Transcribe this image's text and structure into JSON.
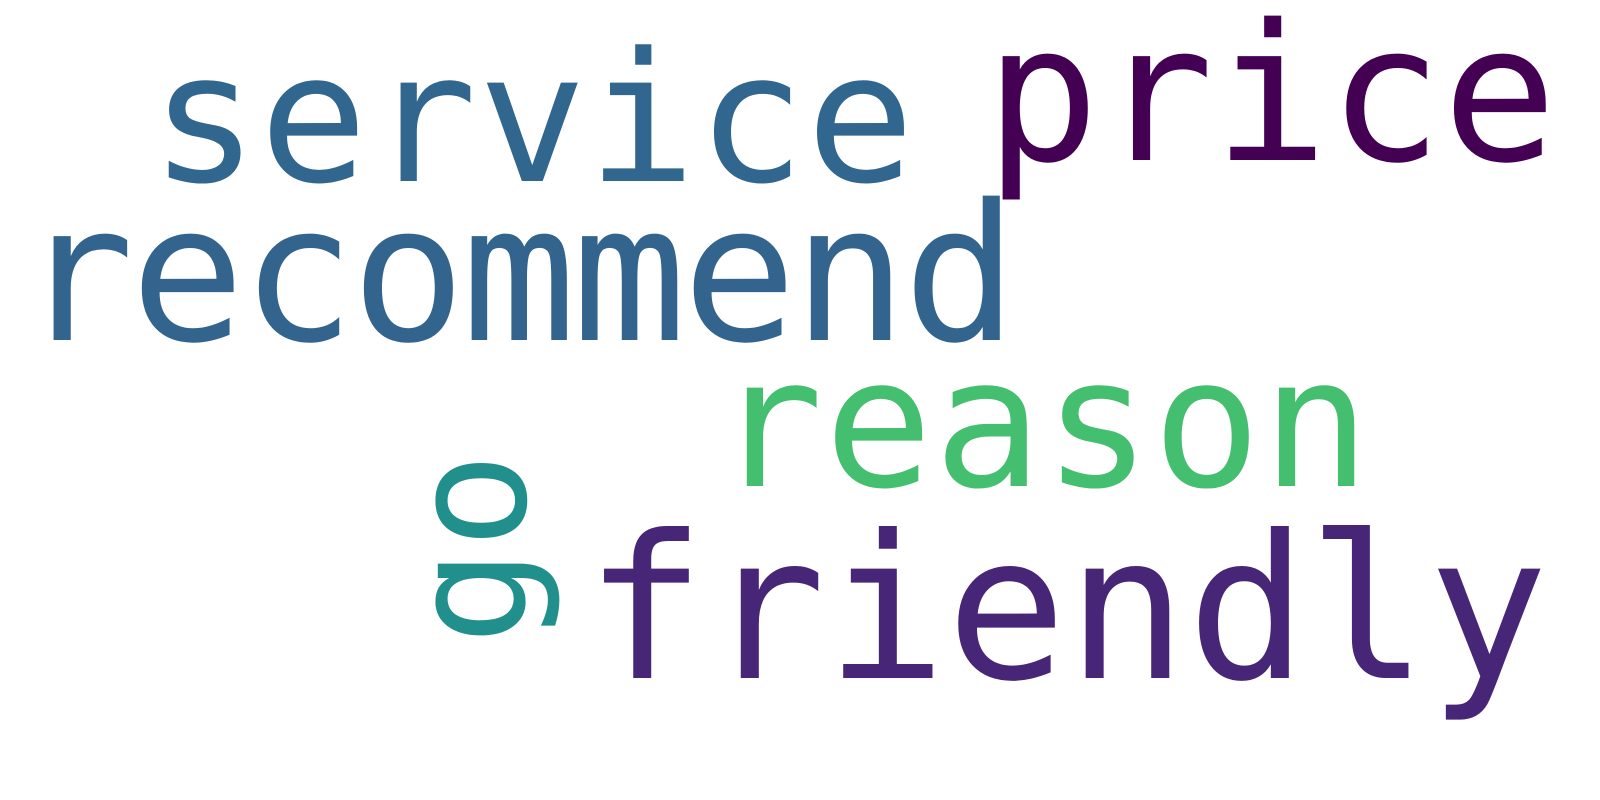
{
  "words": {
    "price": {
      "text": "price",
      "color": "#440154"
    },
    "service": {
      "text": "service",
      "color": "#31668e"
    },
    "recommend": {
      "text": "recommend",
      "color": "#32648e"
    },
    "reason": {
      "text": "reason",
      "color": "#44bf70"
    },
    "go": {
      "text": "go",
      "color": "#21908d"
    },
    "friendly": {
      "text": "friendly",
      "color": "#482677"
    }
  }
}
